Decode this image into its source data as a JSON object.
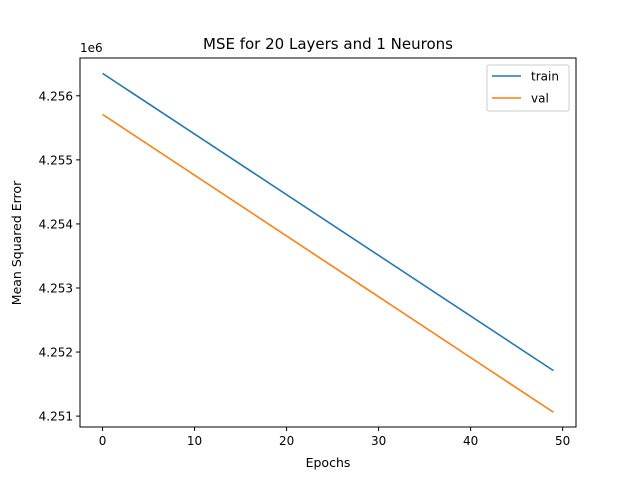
{
  "chart_data": {
    "type": "line",
    "title": "MSE for 20 Layers and 1 Neurons",
    "xlabel": "Epochs",
    "ylabel": "Mean Squared Error",
    "y_offset_label": "1e6",
    "xlim": [
      -2.45,
      51.45
    ],
    "ylim": [
      4.25083,
      4.25659
    ],
    "x_ticks": [
      0,
      10,
      20,
      30,
      40,
      50
    ],
    "y_ticks": [
      4.251,
      4.252,
      4.253,
      4.254,
      4.255,
      4.256
    ],
    "y_tick_labels": [
      "4.251",
      "4.252",
      "4.253",
      "4.254",
      "4.255",
      "4.256"
    ],
    "grid": false,
    "legend_position": "top-right",
    "x": [
      0,
      49
    ],
    "series": [
      {
        "name": "train",
        "color": "#1f77b4",
        "values": [
          4.25635,
          4.25171
        ]
      },
      {
        "name": "val",
        "color": "#ff7f0e",
        "values": [
          4.25571,
          4.25106
        ]
      }
    ]
  }
}
